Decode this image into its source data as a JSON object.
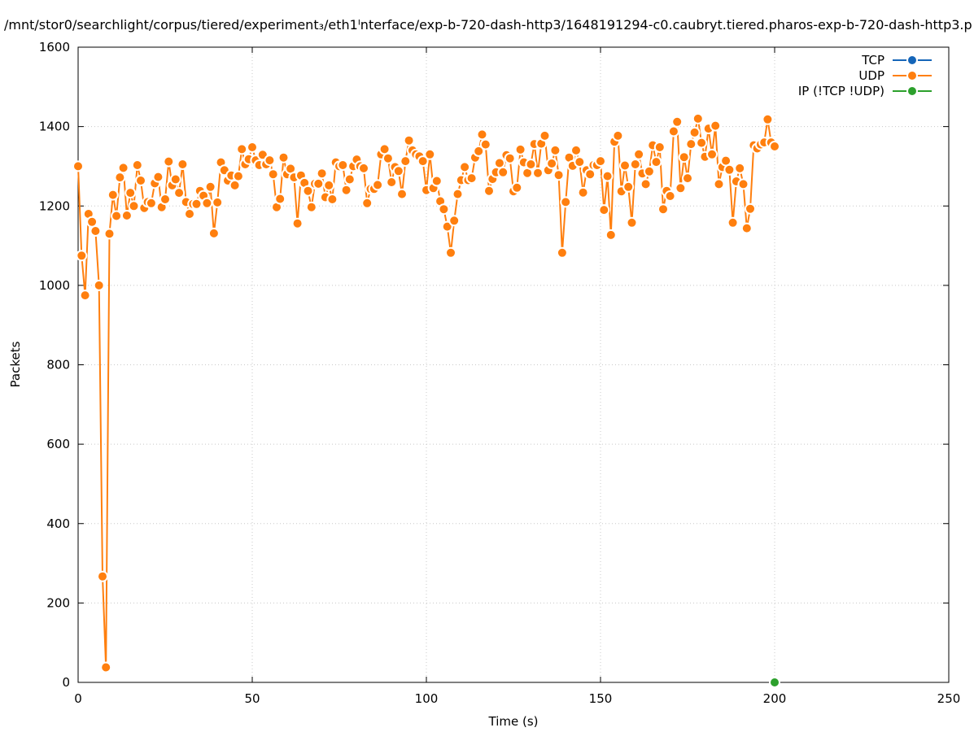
{
  "chart_data": {
    "type": "line",
    "title": "/mnt/stor0/searchlight/corpus/tiered/experiment₃/eth1ᴵnterface/exp-b-720-dash-http3/1648191294-c0.caubryt.tiered.pharos-exp-b-720-dash-http3.p",
    "xlabel": "Time (s)",
    "ylabel": "Packets",
    "xlim": [
      0,
      250
    ],
    "ylim": [
      0,
      1600
    ],
    "xticks": [
      "0",
      "50",
      "100",
      "150",
      "200",
      "250"
    ],
    "yticks": [
      "0",
      "200",
      "400",
      "600",
      "800",
      "1000",
      "1200",
      "1400",
      "1600"
    ],
    "grid": true,
    "legend_position": "top-right",
    "series": [
      {
        "name": "TCP",
        "color": "#1565b8",
        "x": [],
        "y": []
      },
      {
        "name": "UDP",
        "color": "#ff7f0e",
        "x": [
          0,
          1,
          2,
          3,
          4,
          5,
          6,
          7,
          8,
          9,
          10,
          11,
          12,
          13,
          14,
          15,
          16,
          17,
          18,
          19,
          20,
          21,
          22,
          23,
          24,
          25,
          26,
          27,
          28,
          29,
          30,
          31,
          32,
          33,
          34,
          35,
          36,
          37,
          38,
          39,
          40,
          41,
          42,
          43,
          44,
          45,
          46,
          47,
          48,
          49,
          50,
          51,
          52,
          53,
          54,
          55,
          56,
          57,
          58,
          59,
          60,
          61,
          62,
          63,
          64,
          65,
          66,
          67,
          68,
          69,
          70,
          71,
          72,
          73,
          74,
          75,
          76,
          77,
          78,
          79,
          80,
          81,
          82,
          83,
          84,
          85,
          86,
          87,
          88,
          89,
          90,
          91,
          92,
          93,
          94,
          95,
          96,
          97,
          98,
          99,
          100,
          101,
          102,
          103,
          104,
          105,
          106,
          107,
          108,
          109,
          110,
          111,
          112,
          113,
          114,
          115,
          116,
          117,
          118,
          119,
          120,
          121,
          122,
          123,
          124,
          125,
          126,
          127,
          128,
          129,
          130,
          131,
          132,
          133,
          134,
          135,
          136,
          137,
          138,
          139,
          140,
          141,
          142,
          143,
          144,
          145,
          146,
          147,
          148,
          149,
          150,
          151,
          152,
          153,
          154,
          155,
          156,
          157,
          158,
          159,
          160,
          161,
          162,
          163,
          164,
          165,
          166,
          167,
          168,
          169,
          170,
          171,
          172,
          173,
          174,
          175,
          176,
          177,
          178,
          179,
          180,
          181,
          182,
          183,
          184,
          185,
          186,
          187,
          188,
          189,
          190,
          191,
          192,
          193,
          194,
          195,
          196,
          197,
          198,
          199,
          200
        ],
        "y": [
          1300,
          1075,
          975,
          1180,
          1160,
          1137,
          1000,
          267,
          38,
          1130,
          1228,
          1175,
          1272,
          1296,
          1176,
          1233,
          1200,
          1303,
          1264,
          1195,
          1210,
          1207,
          1257,
          1273,
          1197,
          1217,
          1312,
          1252,
          1267,
          1233,
          1305,
          1210,
          1180,
          1205,
          1205,
          1238,
          1226,
          1207,
          1248,
          1131,
          1209,
          1310,
          1290,
          1264,
          1277,
          1252,
          1275,
          1343,
          1305,
          1318,
          1348,
          1315,
          1303,
          1329,
          1305,
          1315,
          1280,
          1197,
          1218,
          1322,
          1280,
          1294,
          1272,
          1156,
          1277,
          1258,
          1238,
          1197,
          1256,
          1256,
          1282,
          1222,
          1252,
          1217,
          1310,
          1300,
          1303,
          1240,
          1267,
          1300,
          1317,
          1300,
          1295,
          1207,
          1243,
          1243,
          1253,
          1330,
          1343,
          1320,
          1260,
          1298,
          1288,
          1230,
          1313,
          1365,
          1340,
          1330,
          1325,
          1313,
          1240,
          1330,
          1245,
          1263,
          1212,
          1192,
          1148,
          1082,
          1163,
          1230,
          1265,
          1298,
          1265,
          1270,
          1322,
          1338,
          1380,
          1355,
          1238,
          1268,
          1285,
          1308,
          1285,
          1328,
          1320,
          1237,
          1246,
          1342,
          1310,
          1283,
          1305,
          1356,
          1283,
          1357,
          1377,
          1290,
          1307,
          1340,
          1278,
          1082,
          1210,
          1322,
          1301,
          1340,
          1311,
          1234,
          1290,
          1280,
          1303,
          1303,
          1313,
          1190,
          1275,
          1127,
          1362,
          1377,
          1237,
          1302,
          1248,
          1158,
          1305,
          1330,
          1282,
          1255,
          1287,
          1353,
          1311,
          1348,
          1192,
          1238,
          1225,
          1388,
          1412,
          1245,
          1323,
          1270,
          1356,
          1385,
          1420,
          1359,
          1324,
          1395,
          1330,
          1402,
          1255,
          1298,
          1314,
          1291,
          1158,
          1262,
          1295,
          1255,
          1144,
          1193,
          1353,
          1345,
          1355,
          1360,
          1418,
          1360,
          1350
        ]
      },
      {
        "name": "IP (!TCP  !UDP)",
        "color": "#2ca02c",
        "x": [
          200
        ],
        "y": [
          0
        ]
      }
    ]
  }
}
